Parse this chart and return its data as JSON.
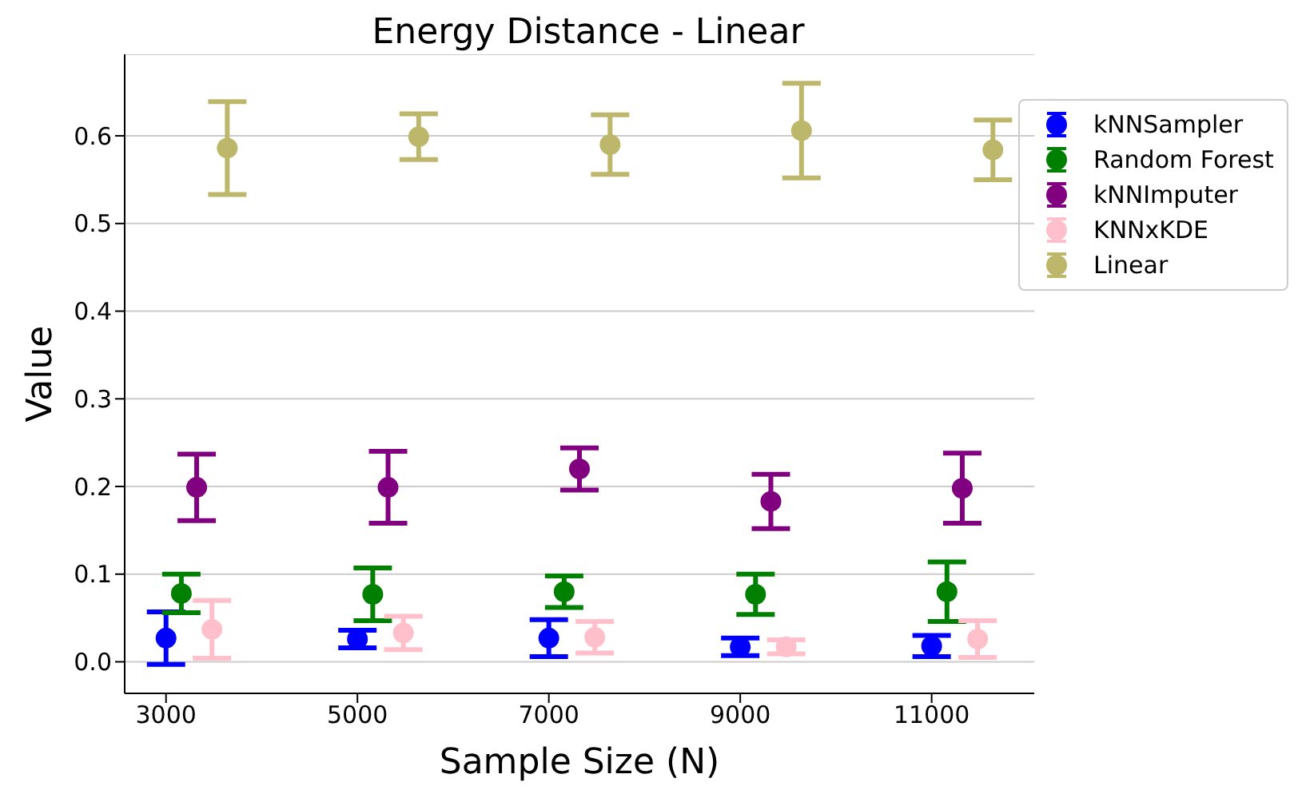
{
  "chart_data": {
    "type": "scatter",
    "title": "Energy Distance - Linear",
    "xlabel": "Sample Size (N)",
    "ylabel": "Value",
    "xlim": [
      2568,
      12072
    ],
    "xticks": [
      3000,
      5000,
      7000,
      9000,
      11000
    ],
    "ylim": [
      -0.036,
      0.693
    ],
    "yticks": [
      {
        "value": 0,
        "label": "0.0"
      },
      {
        "value": 0.1,
        "label": "0.1"
      },
      {
        "value": 0.2,
        "label": "0.2"
      },
      {
        "value": 0.3,
        "label": "0.3"
      },
      {
        "value": 0.4,
        "label": "0.4"
      },
      {
        "value": 0.5,
        "label": "0.5"
      },
      {
        "value": 0.6,
        "label": "0.6"
      }
    ],
    "grid": "y",
    "legend": "right",
    "marker": "circle",
    "series": [
      {
        "name": "kNNSampler",
        "color": "#0000ff",
        "x": [
          3000,
          5000,
          7000,
          9000,
          11000
        ],
        "values": [
          0.027,
          0.026,
          0.027,
          0.017,
          0.018
        ],
        "errors": [
          0.03,
          0.01,
          0.021,
          0.01,
          0.012
        ]
      },
      {
        "name": "Random Forest",
        "color": "#008000",
        "x": [
          3160,
          5160,
          7160,
          9160,
          11160
        ],
        "values": [
          0.078,
          0.077,
          0.08,
          0.077,
          0.08
        ],
        "errors": [
          0.022,
          0.03,
          0.018,
          0.023,
          0.034
        ]
      },
      {
        "name": "kNNImputer",
        "color": "#800080",
        "x": [
          3320,
          5320,
          7320,
          9320,
          11320
        ],
        "values": [
          0.199,
          0.199,
          0.22,
          0.183,
          0.198
        ],
        "errors": [
          0.038,
          0.041,
          0.024,
          0.031,
          0.04
        ]
      },
      {
        "name": "KNNxKDE",
        "color": "#ffc0cb",
        "x": [
          3480,
          5480,
          7480,
          9480,
          11480
        ],
        "values": [
          0.037,
          0.033,
          0.028,
          0.017,
          0.026
        ],
        "errors": [
          0.033,
          0.019,
          0.018,
          0.008,
          0.021
        ]
      },
      {
        "name": "Linear",
        "color": "#bdb76b",
        "x": [
          3640,
          5640,
          7640,
          9640,
          11640
        ],
        "values": [
          0.586,
          0.599,
          0.59,
          0.606,
          0.584
        ],
        "errors": [
          0.053,
          0.026,
          0.034,
          0.054,
          0.034
        ]
      }
    ]
  }
}
